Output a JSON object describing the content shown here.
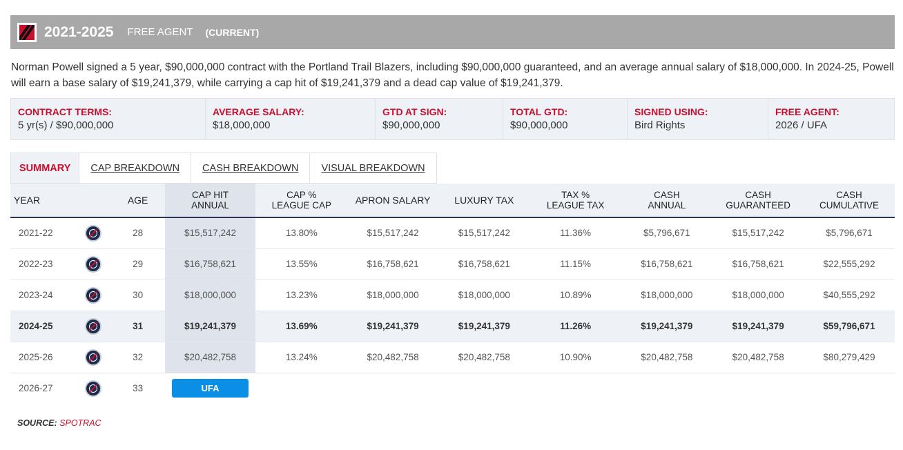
{
  "header": {
    "years": "2021-2025",
    "status": "FREE AGENT",
    "current": "(CURRENT)",
    "logo_icon": "trail-blazers-logo-icon",
    "bar_color": "#a8a8a8"
  },
  "summary": "Norman Powell signed a 5 year, $90,000,000 contract with the Portland Trail Blazers, including $90,000,000 guaranteed, and an average annual salary of $18,000,000. In 2024-25, Powell will earn a base salary of $19,241,379, while carrying a cap hit of $19,241,379 and a dead cap value of $19,241,379.",
  "terms": [
    {
      "label": "CONTRACT TERMS:",
      "value": "5 yr(s) / $90,000,000"
    },
    {
      "label": "AVERAGE SALARY:",
      "value": "$18,000,000"
    },
    {
      "label": "GTD AT SIGN:",
      "value": "$90,000,000"
    },
    {
      "label": "TOTAL GTD:",
      "value": "$90,000,000"
    },
    {
      "label": "SIGNED USING:",
      "value": "Bird Rights"
    },
    {
      "label": "FREE AGENT:",
      "value": "2026 / UFA"
    }
  ],
  "tabs": [
    "SUMMARY",
    "CAP BREAKDOWN",
    "CASH BREAKDOWN",
    "VISUAL BREAKDOWN"
  ],
  "table": {
    "headers": {
      "year": "YEAR",
      "age": "AGE",
      "caphit_1": "CAP HIT",
      "caphit_2": "ANNUAL",
      "cappct_1": "CAP %",
      "cappct_2": "LEAGUE CAP",
      "apron": "APRON SALARY",
      "lux": "LUXURY TAX",
      "taxpct_1": "TAX %",
      "taxpct_2": "LEAGUE TAX",
      "cash_1": "CASH",
      "cash_2": "ANNUAL",
      "cashg_1": "CASH",
      "cashg_2": "GUARANTEED",
      "cashc_1": "CASH",
      "cashc_2": "CUMULATIVE"
    },
    "team_icon": "clippers-logo-icon",
    "rows": [
      {
        "year": "2021-22",
        "age": "28",
        "cap_hit": "$15,517,242",
        "cap_pct": "13.80%",
        "apron": "$15,517,242",
        "lux": "$15,517,242",
        "tax_pct": "11.36%",
        "cash_annual": "$5,796,671",
        "cash_guaranteed": "$15,517,242",
        "cash_cumulative": "$5,796,671"
      },
      {
        "year": "2022-23",
        "age": "29",
        "cap_hit": "$16,758,621",
        "cap_pct": "13.55%",
        "apron": "$16,758,621",
        "lux": "$16,758,621",
        "tax_pct": "11.15%",
        "cash_annual": "$16,758,621",
        "cash_guaranteed": "$16,758,621",
        "cash_cumulative": "$22,555,292"
      },
      {
        "year": "2023-24",
        "age": "30",
        "cap_hit": "$18,000,000",
        "cap_pct": "13.23%",
        "apron": "$18,000,000",
        "lux": "$18,000,000",
        "tax_pct": "10.89%",
        "cash_annual": "$18,000,000",
        "cash_guaranteed": "$18,000,000",
        "cash_cumulative": "$40,555,292"
      },
      {
        "year": "2024-25",
        "age": "31",
        "cap_hit": "$19,241,379",
        "cap_pct": "13.69%",
        "apron": "$19,241,379",
        "lux": "$19,241,379",
        "tax_pct": "11.26%",
        "cash_annual": "$19,241,379",
        "cash_guaranteed": "$19,241,379",
        "cash_cumulative": "$59,796,671"
      },
      {
        "year": "2025-26",
        "age": "32",
        "cap_hit": "$20,482,758",
        "cap_pct": "13.24%",
        "apron": "$20,482,758",
        "lux": "$20,482,758",
        "tax_pct": "10.90%",
        "cash_annual": "$20,482,758",
        "cash_guaranteed": "$20,482,758",
        "cash_cumulative": "$80,279,429"
      }
    ],
    "ufa_row": {
      "year": "2026-27",
      "age": "33",
      "badge": "UFA"
    }
  },
  "source": {
    "label": "SOURCE:",
    "value": "SPOTRAC"
  },
  "colors": {
    "accent": "#c8102e",
    "ufa_badge": "#0a8ee6",
    "panel_bg": "#eef1f6"
  }
}
